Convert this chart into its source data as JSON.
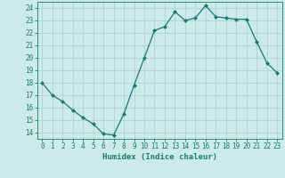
{
  "x": [
    0,
    1,
    2,
    3,
    4,
    5,
    6,
    7,
    8,
    9,
    10,
    11,
    12,
    13,
    14,
    15,
    16,
    17,
    18,
    19,
    20,
    21,
    22,
    23
  ],
  "y": [
    18.0,
    17.0,
    16.5,
    15.8,
    15.2,
    14.7,
    13.9,
    13.8,
    15.5,
    17.8,
    20.0,
    22.2,
    22.5,
    23.7,
    23.0,
    23.2,
    24.2,
    23.3,
    23.2,
    23.1,
    23.1,
    21.3,
    19.6,
    18.8
  ],
  "line_color": "#1a7a6e",
  "marker": "D",
  "marker_size": 2.0,
  "bg_color": "#cceaea",
  "grid_color": "#aad4d4",
  "xlabel": "Humidex (Indice chaleur)",
  "xlim": [
    -0.5,
    23.5
  ],
  "ylim": [
    13.5,
    24.5
  ],
  "yticks": [
    14,
    15,
    16,
    17,
    18,
    19,
    20,
    21,
    22,
    23,
    24
  ],
  "xticks": [
    0,
    1,
    2,
    3,
    4,
    5,
    6,
    7,
    8,
    9,
    10,
    11,
    12,
    13,
    14,
    15,
    16,
    17,
    18,
    19,
    20,
    21,
    22,
    23
  ],
  "label_fontsize": 6.0,
  "tick_fontsize": 5.5,
  "xlabel_fontsize": 6.5
}
